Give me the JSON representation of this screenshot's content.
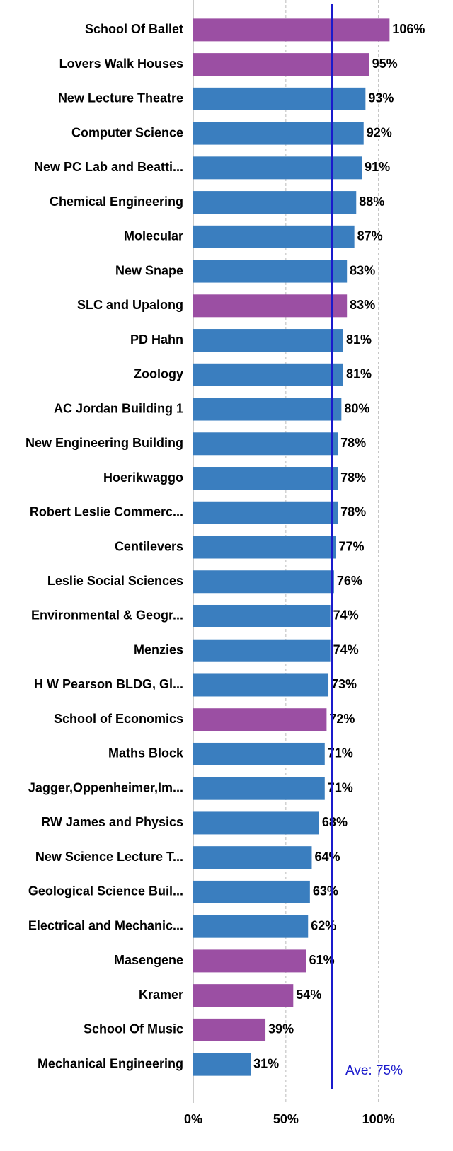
{
  "chart_data": {
    "type": "hbar",
    "categories": [
      "School Of Ballet",
      "Lovers Walk Houses",
      "New Lecture Theatre",
      "Computer Science",
      "New PC Lab and Beatti...",
      "Chemical Engineering",
      "Molecular",
      "New Snape",
      "SLC and Upalong",
      "PD Hahn",
      "Zoology",
      "AC Jordan Building 1",
      "New Engineering Building",
      "Hoerikwaggo",
      "Robert Leslie Commerc...",
      "Centilevers",
      "Leslie Social Sciences",
      "Environmental & Geogr...",
      "Menzies",
      "H W Pearson BLDG, Gl...",
      "School of Economics",
      "Maths Block",
      "Jagger,Oppenheimer,Im...",
      "RW James and Physics",
      "New Science Lecture T...",
      "Geological Science Buil...",
      "Electrical and Mechanic...",
      "Masengene",
      "Kramer",
      "School Of Music",
      "Mechanical Engineering"
    ],
    "values": [
      106,
      95,
      93,
      92,
      91,
      88,
      87,
      83,
      83,
      81,
      81,
      80,
      78,
      78,
      78,
      77,
      76,
      74,
      74,
      73,
      72,
      71,
      71,
      68,
      64,
      63,
      62,
      61,
      54,
      39,
      31
    ],
    "value_labels": [
      "106%",
      "95%",
      "93%",
      "92%",
      "91%",
      "88%",
      "87%",
      "83%",
      "83%",
      "81%",
      "81%",
      "80%",
      "78%",
      "78%",
      "78%",
      "77%",
      "76%",
      "74%",
      "74%",
      "73%",
      "72%",
      "71%",
      "71%",
      "68%",
      "64%",
      "63%",
      "62%",
      "61%",
      "54%",
      "39%",
      "31%"
    ],
    "colors": [
      "#9b4fa3",
      "#9b4fa3",
      "#3a7ebf",
      "#3a7ebf",
      "#3a7ebf",
      "#3a7ebf",
      "#3a7ebf",
      "#3a7ebf",
      "#9b4fa3",
      "#3a7ebf",
      "#3a7ebf",
      "#3a7ebf",
      "#3a7ebf",
      "#3a7ebf",
      "#3a7ebf",
      "#3a7ebf",
      "#3a7ebf",
      "#3a7ebf",
      "#3a7ebf",
      "#3a7ebf",
      "#9b4fa3",
      "#3a7ebf",
      "#3a7ebf",
      "#3a7ebf",
      "#3a7ebf",
      "#3a7ebf",
      "#3a7ebf",
      "#9b4fa3",
      "#9b4fa3",
      "#9b4fa3",
      "#3a7ebf"
    ],
    "xlim": [
      0,
      120
    ],
    "xticks": [
      {
        "value": 0,
        "label": "0%"
      },
      {
        "value": 50,
        "label": "50%"
      },
      {
        "value": 100,
        "label": "100%"
      }
    ],
    "grid": true,
    "reference_line": {
      "value": 75,
      "label": "Ave: 75%",
      "color": "#1a1acc"
    }
  }
}
